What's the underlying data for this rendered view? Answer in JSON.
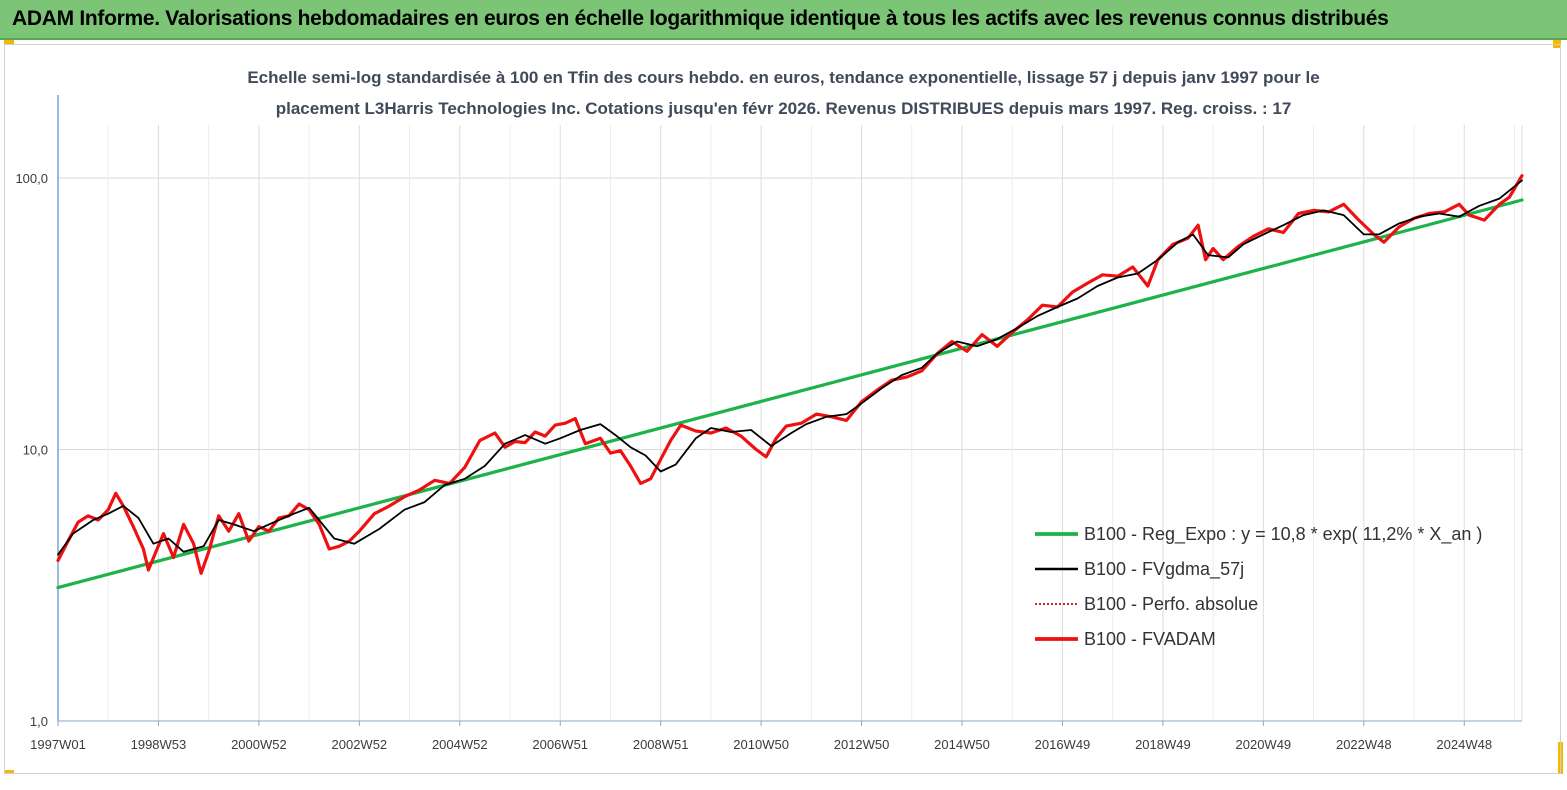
{
  "header": {
    "title": "ADAM Informe. Valorisations hebdomadaires en euros en échelle logarithmique identique à tous les actifs avec les revenus connus distribués"
  },
  "chart_data": {
    "type": "line",
    "title_line1": "Echelle semi-log standardisée à 100 en Tfin des cours hebdo. en euros, tendance exponentielle, lissage 57 j depuis janv 1997 pour le",
    "title_line2": "placement L3Harris Technologies Inc.  Cotations jusqu'en févr 2026. Revenus DISTRIBUES depuis mars 1997. Reg. croiss. : 17",
    "y_scale": "log",
    "ylim": [
      1,
      200
    ],
    "xlim": [
      1997.0,
      2026.15
    ],
    "y_ticks": [
      {
        "value": 1,
        "label": "1,0"
      },
      {
        "value": 10,
        "label": "10,0"
      },
      {
        "value": 100,
        "label": "100,0"
      }
    ],
    "x_ticks": [
      {
        "value": 1997.0,
        "label": "1997W01"
      },
      {
        "value": 1999.0,
        "label": "1998W53"
      },
      {
        "value": 2001.0,
        "label": "2000W52"
      },
      {
        "value": 2003.0,
        "label": "2002W52"
      },
      {
        "value": 2005.0,
        "label": "2004W52"
      },
      {
        "value": 2007.0,
        "label": "2006W51"
      },
      {
        "value": 2009.0,
        "label": "2008W51"
      },
      {
        "value": 2011.0,
        "label": "2010W50"
      },
      {
        "value": 2013.0,
        "label": "2012W50"
      },
      {
        "value": 2015.0,
        "label": "2014W50"
      },
      {
        "value": 2017.0,
        "label": "2016W49"
      },
      {
        "value": 2019.0,
        "label": "2018W49"
      },
      {
        "value": 2021.0,
        "label": "2020W49"
      },
      {
        "value": 2023.0,
        "label": "2022W48"
      },
      {
        "value": 2025.0,
        "label": "2024W48"
      }
    ],
    "grid": "vertical",
    "legend_position": "right",
    "series": [
      {
        "name": "B100 - Reg_Expo : y = 10,8 * exp( 11,2% *  X_an )",
        "color": "#1db34a",
        "style": "solid-thick",
        "x": [
          1997.0,
          2026.15
        ],
        "y": [
          3.1,
          83
        ]
      },
      {
        "name": "B100 - FVgdma_57j",
        "color": "#000000",
        "style": "solid",
        "x": [
          1997.0,
          1997.3,
          1997.7,
          1998.0,
          1998.3,
          1998.6,
          1998.9,
          1999.2,
          1999.5,
          1999.9,
          2000.2,
          2000.5,
          2000.9,
          2001.3,
          2001.7,
          2002.0,
          2002.5,
          2002.9,
          2003.4,
          2003.9,
          2004.3,
          2004.7,
          2005.1,
          2005.5,
          2005.9,
          2006.3,
          2006.7,
          2007.0,
          2007.4,
          2007.8,
          2008.1,
          2008.4,
          2008.7,
          2009.0,
          2009.3,
          2009.7,
          2010.0,
          2010.4,
          2010.8,
          2011.2,
          2011.6,
          2011.9,
          2012.3,
          2012.7,
          2013.0,
          2013.4,
          2013.8,
          2014.2,
          2014.5,
          2014.9,
          2015.3,
          2015.7,
          2016.1,
          2016.5,
          2016.9,
          2017.3,
          2017.7,
          2018.1,
          2018.5,
          2018.9,
          2019.3,
          2019.6,
          2019.9,
          2020.3,
          2020.6,
          2021.0,
          2021.4,
          2021.8,
          2022.2,
          2022.6,
          2023.0,
          2023.3,
          2023.7,
          2024.1,
          2024.5,
          2024.9,
          2025.3,
          2025.7,
          2026.15
        ],
        "y": [
          4.1,
          4.9,
          5.5,
          5.8,
          6.2,
          5.6,
          4.5,
          4.7,
          4.2,
          4.4,
          5.5,
          5.3,
          5.0,
          5.4,
          5.8,
          6.1,
          4.7,
          4.5,
          5.1,
          6.0,
          6.4,
          7.4,
          7.8,
          8.7,
          10.5,
          11.3,
          10.5,
          11.0,
          11.8,
          12.4,
          11.3,
          10.2,
          9.5,
          8.3,
          8.8,
          11.0,
          12.0,
          11.6,
          11.8,
          10.3,
          11.5,
          12.4,
          13.2,
          13.5,
          14.8,
          16.8,
          18.8,
          20.0,
          22.5,
          25.0,
          24.0,
          25.5,
          28.0,
          31.0,
          33.5,
          36.0,
          40.0,
          43.0,
          44.5,
          50.0,
          58.0,
          62.0,
          52.0,
          51.0,
          57.0,
          62.0,
          67.0,
          73.0,
          76.0,
          73.0,
          62.0,
          62.0,
          68.0,
          72.0,
          74.0,
          72.0,
          79.0,
          84.0,
          98.0
        ]
      },
      {
        "name": "B100 - Perfo. absolue",
        "color": "#e0201a",
        "style": "dotted",
        "x": [],
        "y": []
      },
      {
        "name": "B100 - FVADAM",
        "color": "#ee1111",
        "style": "solid-thick",
        "x": [
          1997.0,
          1997.2,
          1997.4,
          1997.6,
          1997.8,
          1998.0,
          1998.15,
          1998.3,
          1998.5,
          1998.7,
          1998.8,
          1998.95,
          1999.1,
          1999.3,
          1999.5,
          1999.7,
          1999.85,
          2000.0,
          2000.2,
          2000.4,
          2000.6,
          2000.8,
          2001.0,
          2001.2,
          2001.4,
          2001.6,
          2001.8,
          2002.0,
          2002.2,
          2002.4,
          2002.6,
          2002.8,
          2003.0,
          2003.3,
          2003.6,
          2003.9,
          2004.2,
          2004.5,
          2004.8,
          2005.1,
          2005.4,
          2005.7,
          2005.9,
          2006.1,
          2006.3,
          2006.5,
          2006.7,
          2006.9,
          2007.1,
          2007.3,
          2007.5,
          2007.8,
          2008.0,
          2008.2,
          2008.4,
          2008.6,
          2008.8,
          2009.0,
          2009.2,
          2009.4,
          2009.7,
          2010.0,
          2010.3,
          2010.6,
          2010.9,
          2011.1,
          2011.3,
          2011.5,
          2011.8,
          2012.1,
          2012.4,
          2012.7,
          2013.0,
          2013.3,
          2013.6,
          2013.9,
          2014.2,
          2014.5,
          2014.8,
          2015.1,
          2015.4,
          2015.7,
          2016.0,
          2016.3,
          2016.6,
          2016.9,
          2017.2,
          2017.5,
          2017.8,
          2018.1,
          2018.4,
          2018.7,
          2018.9,
          2019.2,
          2019.5,
          2019.7,
          2019.85,
          2020.0,
          2020.2,
          2020.5,
          2020.8,
          2021.1,
          2021.4,
          2021.7,
          2022.0,
          2022.3,
          2022.6,
          2022.9,
          2023.2,
          2023.4,
          2023.7,
          2024.0,
          2024.3,
          2024.6,
          2024.9,
          2025.1,
          2025.4,
          2025.7,
          2025.9,
          2026.15
        ],
        "y": [
          3.9,
          4.6,
          5.4,
          5.7,
          5.5,
          6.0,
          6.9,
          6.2,
          5.2,
          4.3,
          3.6,
          4.2,
          4.9,
          4.0,
          5.3,
          4.5,
          3.5,
          4.2,
          5.7,
          5.0,
          5.8,
          4.6,
          5.2,
          5.0,
          5.6,
          5.7,
          6.3,
          6.0,
          5.3,
          4.3,
          4.4,
          4.6,
          5.0,
          5.8,
          6.2,
          6.7,
          7.1,
          7.7,
          7.5,
          8.6,
          10.8,
          11.5,
          10.2,
          10.7,
          10.6,
          11.6,
          11.2,
          12.3,
          12.5,
          13.0,
          10.5,
          11.0,
          9.7,
          9.9,
          8.7,
          7.5,
          7.8,
          9.2,
          10.8,
          12.3,
          11.7,
          11.5,
          12.0,
          11.2,
          10.0,
          9.4,
          11.0,
          12.2,
          12.5,
          13.5,
          13.2,
          12.8,
          15.0,
          16.5,
          18.0,
          18.5,
          19.5,
          22.5,
          25.0,
          23.0,
          26.5,
          24.0,
          27.0,
          30.0,
          34.0,
          33.5,
          38.0,
          41.0,
          44.0,
          43.5,
          47.0,
          40.0,
          50.0,
          57.0,
          60.0,
          67.0,
          50.0,
          55.0,
          50.0,
          56.0,
          61.0,
          65.0,
          63.0,
          74.0,
          76.0,
          75.0,
          80.0,
          70.0,
          62.0,
          58.0,
          66.0,
          71.0,
          74.0,
          75.0,
          80.0,
          73.0,
          70.0,
          80.0,
          85.0,
          102.0
        ]
      }
    ]
  }
}
